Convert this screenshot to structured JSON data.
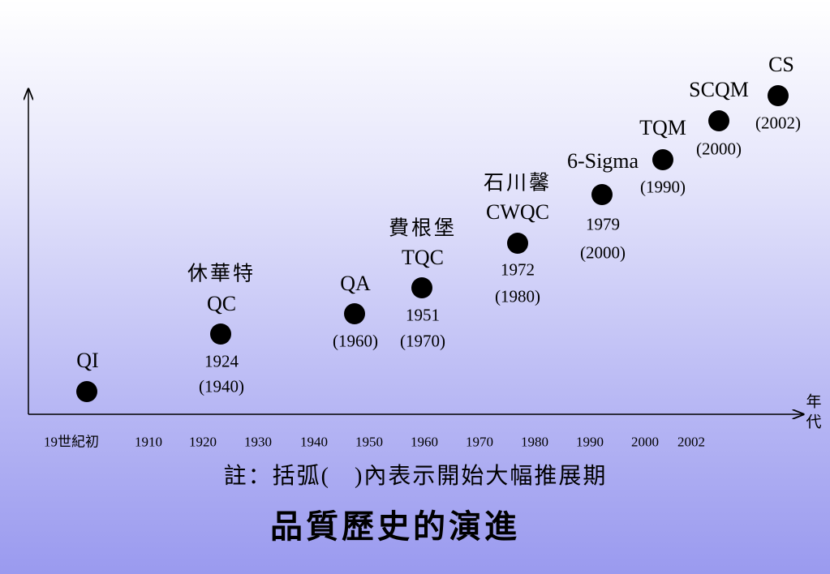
{
  "title": "品質歷史的演進",
  "note": "註：括弧(　)內表示開始大幅推展期",
  "axis": {
    "unit": "年代",
    "ticks": [
      "19世紀初",
      "1910",
      "1920",
      "1930",
      "1940",
      "1950",
      "1960",
      "1970",
      "1980",
      "1990",
      "2000",
      "2002"
    ]
  },
  "nodes": [
    {
      "name": "QI"
    },
    {
      "person": "休華特",
      "name": "QC",
      "year": "1924",
      "spread": "(1940)"
    },
    {
      "name": "QA",
      "spread": "(1960)"
    },
    {
      "person": "費根堡",
      "name": "TQC",
      "year": "1951",
      "spread": "(1970)"
    },
    {
      "person": "石川馨",
      "name": "CWQC",
      "year": "1972",
      "spread": "(1980)"
    },
    {
      "name": "6-Sigma",
      "year": "1979",
      "spread": "(2000)"
    },
    {
      "name": "TQM",
      "spread": "(1990)"
    },
    {
      "name": "SCQM",
      "spread": "(2000)"
    },
    {
      "name": "CS",
      "spread": "(2002)"
    }
  ]
}
